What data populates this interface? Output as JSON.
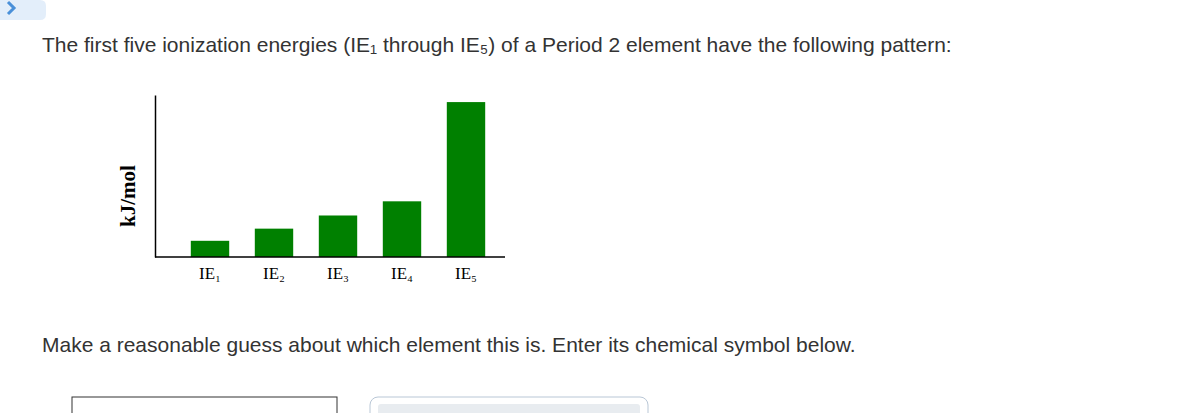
{
  "chart_data": {
    "type": "bar",
    "title": "The first five ionization energies (IE₁ through IE₅) of a Period 2 element have the following pattern:",
    "y_label": "kJ/mol",
    "categories": [
      "IE₁",
      "IE₂",
      "IE₃",
      "IE₄",
      "IE₅"
    ],
    "values": [
      1600,
      2800,
      4100,
      5500,
      15300
    ],
    "color": "#008000",
    "ylim": [
      0,
      16000
    ],
    "yticks": [],
    "tick_labels": "x",
    "grid": false,
    "annotations": [
      "Make a reasonable guess about which element this is. Enter its chemical symbol below."
    ]
  }
}
